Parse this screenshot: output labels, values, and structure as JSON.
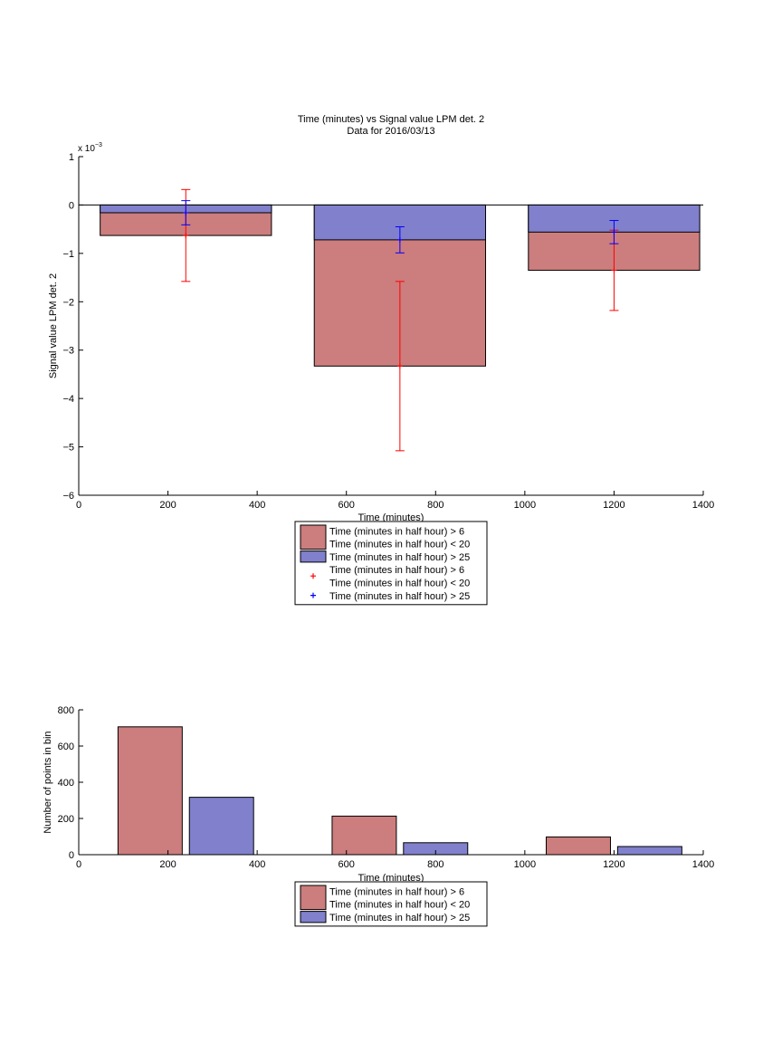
{
  "chart_data": [
    {
      "type": "bar",
      "title": "Time (minutes) vs Signal value LPM det. 2",
      "subtitle": "Data for 2016/03/13",
      "xlabel": "Time (minutes)",
      "ylabel": "Signal value LPM det. 2",
      "scale_exponent": "x 10",
      "scale_power": "−3",
      "xlim": [
        0,
        1400
      ],
      "ylim": [
        -6,
        1
      ],
      "xticks": [
        "0",
        "200",
        "400",
        "600",
        "800",
        "1000",
        "1200",
        "1400"
      ],
      "yticks": [
        "−6",
        "−5",
        "−4",
        "−3",
        "−2",
        "−1",
        "0",
        "1"
      ],
      "categories": [
        240,
        720,
        1200
      ],
      "series": [
        {
          "name": "Time (minutes in half hour) > 6 Time (minutes in half hour) < 20",
          "color": "#cc7d7d",
          "values": [
            -0.63,
            -3.33,
            -1.35
          ],
          "errors": [
            0.95,
            1.75,
            0.83
          ],
          "error_color": "#ff0000"
        },
        {
          "name": "Time (minutes in half hour) > 25",
          "color": "#8080cc",
          "values": [
            -0.16,
            -0.72,
            -0.56
          ],
          "errors": [
            0.25,
            0.27,
            0.24
          ],
          "error_color": "#0000ff"
        }
      ],
      "legend_position": "below",
      "legend": [
        {
          "kind": "patch",
          "color": "#cc7d7d",
          "lines": [
            "Time (minutes in half hour) > 6",
            "Time (minutes in half hour) < 20"
          ]
        },
        {
          "kind": "patch",
          "color": "#8080cc",
          "lines": [
            "Time (minutes in half hour) > 25"
          ]
        },
        {
          "kind": "marker",
          "color": "#ff0000",
          "lines": [
            "Time (minutes in half hour) > 6",
            "Time (minutes in half hour) < 20"
          ]
        },
        {
          "kind": "marker",
          "color": "#0000ff",
          "lines": [
            "Time (minutes in half hour) > 25"
          ]
        }
      ],
      "grid": false
    },
    {
      "type": "bar",
      "xlabel": "Time (minutes)",
      "ylabel": "Number of points in bin",
      "xlim": [
        0,
        1400
      ],
      "ylim": [
        0,
        800
      ],
      "xticks": [
        "0",
        "200",
        "400",
        "600",
        "800",
        "1000",
        "1200",
        "1400"
      ],
      "yticks": [
        "0",
        "200",
        "400",
        "600",
        "800"
      ],
      "categories": [
        240,
        720,
        1200
      ],
      "series": [
        {
          "name": "Time (minutes in half hour) > 6 Time (minutes in half hour) < 20",
          "color": "#cc7d7d",
          "values": [
            706,
            213,
            98
          ]
        },
        {
          "name": "Time (minutes in half hour) > 25",
          "color": "#8080cc",
          "values": [
            317,
            66,
            45
          ]
        }
      ],
      "legend_position": "below",
      "legend": [
        {
          "kind": "patch",
          "color": "#cc7d7d",
          "lines": [
            "Time (minutes in half hour) > 6",
            "Time (minutes in half hour) < 20"
          ]
        },
        {
          "kind": "patch",
          "color": "#8080cc",
          "lines": [
            "Time (minutes in half hour) > 25"
          ]
        }
      ],
      "grid": false
    }
  ]
}
